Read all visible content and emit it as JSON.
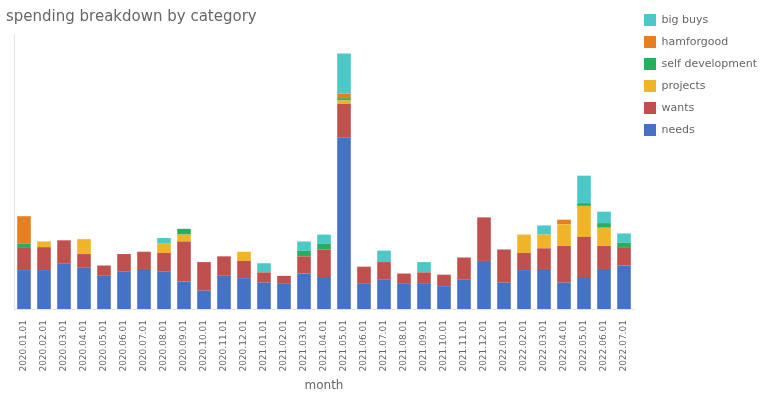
{
  "chart_data": {
    "type": "bar",
    "title": "spending breakdown by category",
    "xlabel": "month",
    "categories": [
      "2020.01.01",
      "2020.02.01",
      "2020.03.01",
      "2020.04.01",
      "2020.05.01",
      "2020.06.01",
      "2020.07.01",
      "2020.08.01",
      "2020.09.01",
      "2020.10.01",
      "2020.11.01",
      "2020.12.01",
      "2021.01.01",
      "2021.02.01",
      "2021.03.01",
      "2021.04.01",
      "2021.05.01",
      "2021.06.01",
      "2021.07.01",
      "2021.08.01",
      "2021.09.01",
      "2021.10.01",
      "2021.11.01",
      "2021.12.01",
      "2022.01.01",
      "2022.02.01",
      "2022.03.01",
      "2022.04.01",
      "2022.05.01",
      "2022.06.01",
      "2022.07.01"
    ],
    "series": [
      {
        "name": "needs",
        "color": "#4472C4",
        "values": [
          170,
          170,
          200,
          180,
          145,
          165,
          175,
          165,
          120,
          80,
          145,
          135,
          115,
          110,
          155,
          140,
          750,
          110,
          130,
          110,
          110,
          100,
          130,
          210,
          115,
          170,
          175,
          115,
          140,
          175,
          190
        ]
      },
      {
        "name": "wants",
        "color": "#C0504D",
        "values": [
          100,
          100,
          100,
          60,
          45,
          75,
          75,
          80,
          175,
          125,
          85,
          75,
          45,
          35,
          75,
          120,
          145,
          75,
          75,
          45,
          50,
          50,
          95,
          190,
          145,
          75,
          90,
          160,
          175,
          100,
          80
        ]
      },
      {
        "name": "projects",
        "color": "#F0B429",
        "values": [
          0,
          25,
          0,
          65,
          0,
          0,
          0,
          40,
          30,
          0,
          0,
          40,
          0,
          0,
          0,
          0,
          15,
          0,
          0,
          0,
          0,
          0,
          0,
          0,
          0,
          80,
          60,
          95,
          135,
          80,
          0
        ]
      },
      {
        "name": "self development",
        "color": "#27AE60",
        "values": [
          15,
          0,
          0,
          0,
          0,
          0,
          0,
          0,
          25,
          0,
          0,
          0,
          0,
          0,
          25,
          25,
          10,
          0,
          0,
          0,
          0,
          0,
          0,
          0,
          0,
          0,
          0,
          0,
          12,
          20,
          20
        ]
      },
      {
        "name": "hamforgood",
        "color": "#E67E22",
        "values": [
          120,
          0,
          0,
          0,
          0,
          0,
          0,
          0,
          0,
          0,
          0,
          0,
          0,
          0,
          0,
          0,
          20,
          0,
          0,
          0,
          0,
          0,
          0,
          0,
          0,
          0,
          0,
          20,
          0,
          0,
          0
        ]
      },
      {
        "name": "big buys",
        "color": "#4DC8C8",
        "values": [
          0,
          0,
          0,
          0,
          0,
          0,
          0,
          25,
          0,
          0,
          0,
          0,
          40,
          0,
          40,
          40,
          175,
          0,
          50,
          0,
          45,
          0,
          0,
          0,
          0,
          0,
          40,
          0,
          120,
          50,
          40
        ]
      }
    ],
    "stacked": true,
    "ylim": [
      0,
      1200
    ],
    "grid": false,
    "legend": "right",
    "tick_labels": "x"
  }
}
